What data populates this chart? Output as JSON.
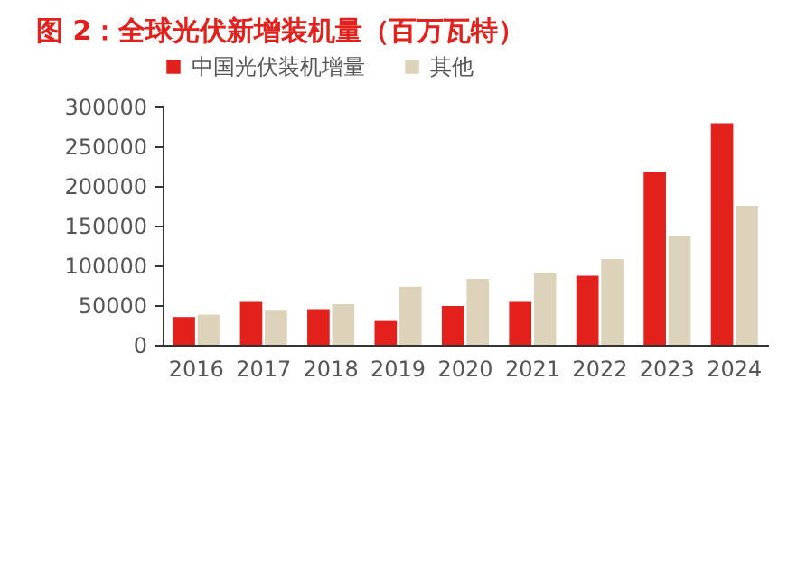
{
  "chart_data": {
    "type": "bar",
    "title": "图 2：全球光伏新增装机量（百万瓦特）",
    "categories": [
      "2016",
      "2017",
      "2018",
      "2019",
      "2020",
      "2021",
      "2022",
      "2023",
      "2024"
    ],
    "series": [
      {
        "name": "中国光伏装机增量",
        "color": "#e2211c",
        "values": [
          35000,
          54000,
          45000,
          30000,
          49000,
          54000,
          87000,
          217000,
          279000
        ]
      },
      {
        "name": "其他",
        "color": "#ddd3bb",
        "values": [
          38000,
          43000,
          51000,
          73000,
          83000,
          91000,
          108000,
          137000,
          175000
        ]
      }
    ],
    "ylim": [
      0,
      300000
    ],
    "yticks": [
      0,
      50000,
      100000,
      150000,
      200000,
      250000,
      300000
    ],
    "grid": false,
    "legend": "top"
  }
}
